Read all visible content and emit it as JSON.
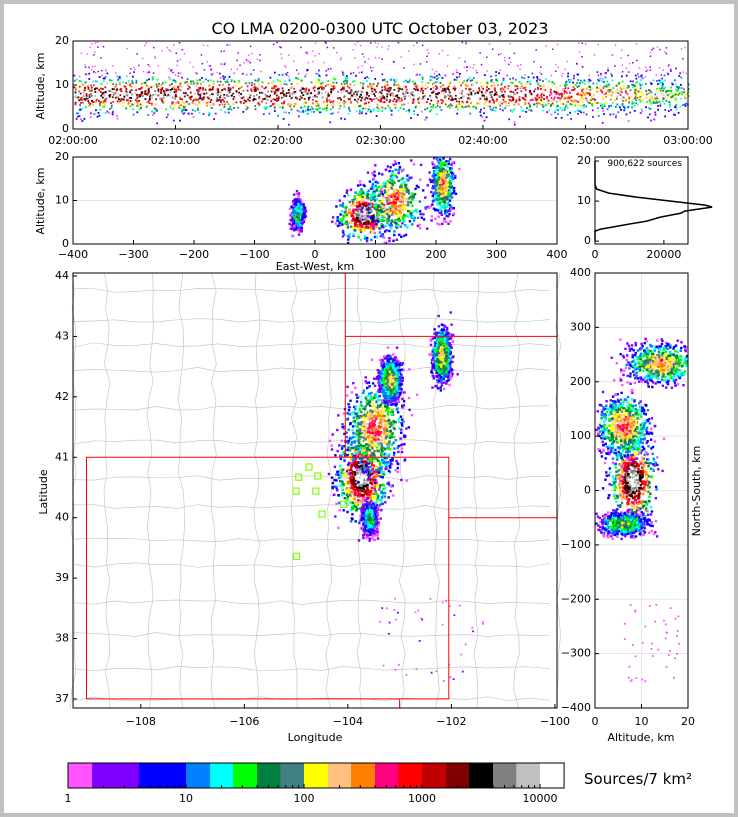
{
  "title": "CO LMA 0200-0300 UTC October 03, 2023",
  "colors": {
    "state_border": "#ff0000",
    "county_border": "#c8c8c8",
    "station": "#80ff00",
    "background": "#ffffff",
    "frame": "#c0c0c0"
  },
  "chart_data": [
    {
      "id": "time_altitude",
      "type": "heatmap",
      "ylabel": "Altitude, km",
      "ylim": [
        0,
        20
      ],
      "yticks": [
        "0",
        "10",
        "20"
      ],
      "xticks": [
        "02:00:00",
        "02:10:00",
        "02:20:00",
        "02:30:00",
        "02:40:00",
        "02:50:00",
        "03:00:00"
      ],
      "xlim_minutes": [
        0,
        60
      ]
    },
    {
      "id": "eastwest_altitude",
      "type": "heatmap",
      "xlabel": "East-West, km",
      "ylabel": "Altitude, km",
      "xlim": [
        -400,
        400
      ],
      "ylim": [
        0,
        20
      ],
      "xticks": [
        "−400",
        "−300",
        "−200",
        "−100",
        "0",
        "100",
        "200",
        "300",
        "400"
      ],
      "yticks": [
        "0",
        "10",
        "20"
      ],
      "clusters": [
        {
          "x": 80,
          "alt": 7,
          "sx": 22,
          "sy": 3,
          "peak": 0.95
        },
        {
          "x": 130,
          "alt": 10,
          "sx": 25,
          "sy": 4,
          "peak": 0.6
        },
        {
          "x": 210,
          "alt": 14,
          "sx": 10,
          "sy": 4,
          "peak": 0.55
        },
        {
          "x": -30,
          "alt": 7,
          "sx": 6,
          "sy": 2,
          "peak": 0.35
        }
      ]
    },
    {
      "id": "altitude_histogram",
      "type": "line",
      "annotation": "900,622 sources",
      "xlim": [
        0,
        27000
      ],
      "ylim": [
        -0.7,
        21
      ],
      "xticks": [
        "0",
        "20000"
      ],
      "yticks": [
        "0",
        "10",
        "20"
      ],
      "altitude": [
        0,
        2.5,
        3,
        4,
        5,
        6,
        6.5,
        7,
        7.5,
        8,
        8.5,
        9,
        10,
        11,
        12,
        13,
        14,
        20
      ],
      "count": [
        0,
        0,
        1500,
        8000,
        15000,
        19000,
        22000,
        25000,
        26000,
        30000,
        34000,
        32000,
        22000,
        12000,
        4000,
        500,
        0,
        0
      ]
    },
    {
      "id": "plan_view",
      "type": "heatmap",
      "xlabel": "Longitude",
      "ylabel": "Latitude",
      "xlim": [
        -109.31,
        -99.96
      ],
      "ylim": [
        36.85,
        44.05
      ],
      "xticks": [
        "−108",
        "−106",
        "−104",
        "−102",
        "−100"
      ],
      "yticks": [
        "37",
        "38",
        "39",
        "40",
        "41",
        "42",
        "43",
        "44"
      ],
      "clusters": [
        {
          "lon": -103.75,
          "lat": 40.7,
          "sx": 0.25,
          "sy": 0.35,
          "peak": 0.97
        },
        {
          "lon": -103.5,
          "lat": 41.5,
          "sx": 0.3,
          "sy": 0.4,
          "peak": 0.6
        },
        {
          "lon": -103.2,
          "lat": 42.3,
          "sx": 0.12,
          "sy": 0.2,
          "peak": 0.5
        },
        {
          "lon": -102.2,
          "lat": 42.7,
          "sx": 0.1,
          "sy": 0.25,
          "peak": 0.5
        },
        {
          "lon": -103.6,
          "lat": 40.0,
          "sx": 0.08,
          "sy": 0.15,
          "peak": 0.35
        }
      ],
      "stations": [
        [
          -104.75,
          40.84
        ],
        [
          -104.95,
          40.67
        ],
        [
          -104.58,
          40.69
        ],
        [
          -105.0,
          40.44
        ],
        [
          -104.62,
          40.44
        ],
        [
          -104.5,
          40.06
        ],
        [
          -104.08,
          40.22
        ],
        [
          -104.99,
          39.36
        ]
      ]
    },
    {
      "id": "altitude_northsouth",
      "type": "heatmap",
      "xlabel": "Altitude, km",
      "ylabel": "North-South, km",
      "xlim": [
        0,
        20
      ],
      "ylim": [
        -400,
        400
      ],
      "xticks": [
        "0",
        "10",
        "20"
      ],
      "yticks": [
        "−400",
        "−300",
        "−200",
        "−100",
        "0",
        "100",
        "200",
        "300",
        "400"
      ],
      "clusters": [
        {
          "ns": 20,
          "alt": 8,
          "sx": 2.5,
          "sy": 40,
          "peak": 0.97
        },
        {
          "ns": 120,
          "alt": 6,
          "sx": 3,
          "sy": 30,
          "peak": 0.6
        },
        {
          "ns": 235,
          "alt": 14,
          "sx": 4,
          "sy": 20,
          "peak": 0.55
        },
        {
          "ns": -60,
          "alt": 6,
          "sx": 3,
          "sy": 12,
          "peak": 0.4
        }
      ]
    },
    {
      "id": "colorbar",
      "type": "colorbar",
      "label": "Sources/7 km²",
      "scale": "log",
      "bounds": [
        1,
        1.6,
        4,
        10,
        16,
        25,
        40,
        63,
        100,
        160,
        250,
        400,
        630,
        1000,
        1600,
        2500,
        4000,
        6300,
        10000,
        16000
      ],
      "colors": [
        "#ff55ff",
        "#8000ff",
        "#0000ff",
        "#0080ff",
        "#00ffff",
        "#00ff00",
        "#008040",
        "#408080",
        "#ffff00",
        "#ffc080",
        "#ff8000",
        "#ff0080",
        "#ff0000",
        "#c00000",
        "#800000",
        "#000000",
        "#808080",
        "#c0c0c0",
        "#ffffff"
      ],
      "ticks": [
        "1",
        "10",
        "100",
        "1000",
        "10000"
      ]
    }
  ]
}
